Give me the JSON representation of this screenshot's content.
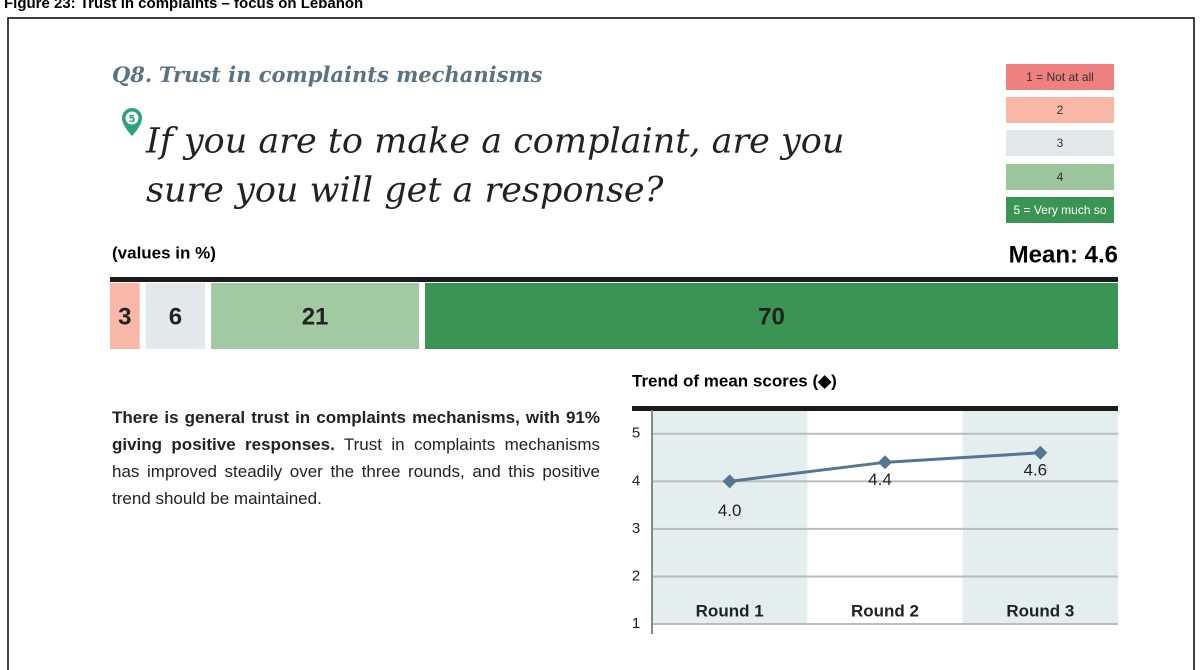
{
  "figure_caption": "Figure 23: Trust in complaints – focus on Lebanon",
  "question_number": "Q8.",
  "question_topic": "Trust in complaints mechanisms",
  "question_icon": "5",
  "question_lines": [
    "If you are to make a complaint, are you",
    "sure you will get a response?"
  ],
  "legend": [
    {
      "label": "1 = Not at all",
      "color": "#ef8080"
    },
    {
      "label": "2",
      "color": "#f8b7a7"
    },
    {
      "label": "3",
      "color": "#e3e8ea"
    },
    {
      "label": "4",
      "color": "#9cc59c"
    },
    {
      "label": "5 = Very much so",
      "color": "#3a9555"
    }
  ],
  "values_note": "(values in %)",
  "mean": "Mean: 4.6",
  "distribution": {
    "type": "bar",
    "values": [
      3,
      6,
      21,
      70
    ],
    "colors": [
      "#f8b7a7",
      "#e3e8ea",
      "#a3c9a3",
      "#3a9555"
    ]
  },
  "text": {
    "bold": "There is general trust in complaints mechanisms, with 91% giving positive responses.",
    "rest": "Trust in complaints mechanisms has improved steadily over the three rounds, and this positive trend should be maintained."
  },
  "trend": {
    "type": "line",
    "title": "Trend of mean scores (◆)",
    "categories": [
      "Round 1",
      "Round 2",
      "Round 3"
    ],
    "values": [
      4.0,
      4.4,
      4.6
    ],
    "value_labels": [
      "4.0",
      "4.4",
      "4.6"
    ],
    "color": "#557591",
    "ylim": [
      1,
      5.5
    ],
    "yticks": [
      1,
      2,
      3,
      4,
      5
    ],
    "grid": true
  }
}
